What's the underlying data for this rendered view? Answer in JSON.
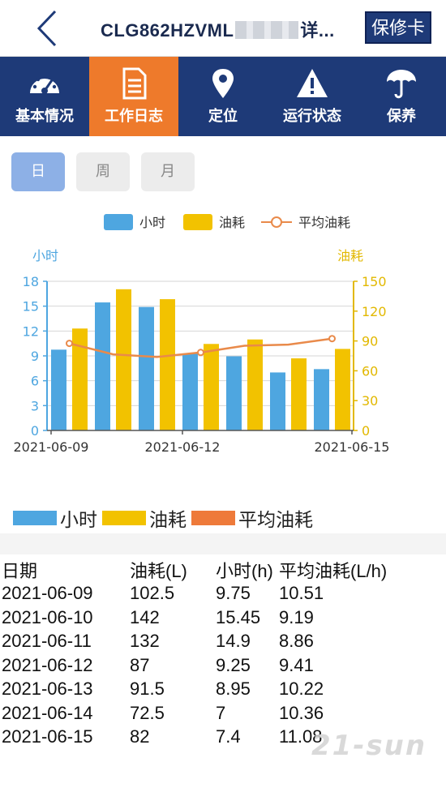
{
  "header": {
    "title": "CLG862HZVML",
    "title_suffix": "详...",
    "card_button": "保修卡"
  },
  "tabs": [
    {
      "label": "基本情况",
      "icon": "dashboard-icon"
    },
    {
      "label": "工作日志",
      "icon": "document-icon",
      "active": true
    },
    {
      "label": "定位",
      "icon": "location-pin-icon"
    },
    {
      "label": "运行状态",
      "icon": "warning-icon"
    },
    {
      "label": "保养",
      "icon": "umbrella-icon"
    }
  ],
  "periods": {
    "day": "日",
    "week": "周",
    "month": "月",
    "selected": "日"
  },
  "chart_legend": {
    "hours": "小时",
    "fuel": "油耗",
    "avg": "平均油耗"
  },
  "chart_data": {
    "type": "bar",
    "left_axis_label": "小时",
    "right_axis_label": "油耗",
    "categories": [
      "2021-06-09",
      "2021-06-10",
      "2021-06-11",
      "2021-06-12",
      "2021-06-13",
      "2021-06-14",
      "2021-06-15"
    ],
    "x_tick_labels": [
      "2021-06-09",
      "2021-06-12",
      "2021-06-15"
    ],
    "y_left_ticks": [
      "0",
      "3",
      "6",
      "9",
      "12",
      "15",
      "18"
    ],
    "y_right_ticks": [
      "0",
      "30",
      "60",
      "90",
      "120",
      "150"
    ],
    "ylim_left": [
      0,
      18
    ],
    "ylim_right": [
      0,
      150
    ],
    "series": [
      {
        "name": "小时",
        "axis": "left",
        "kind": "bar",
        "color": "#4ea6e0",
        "values": [
          9.75,
          15.45,
          14.9,
          9.25,
          8.95,
          7,
          7.4
        ]
      },
      {
        "name": "油耗",
        "axis": "right",
        "kind": "bar",
        "color": "#f2c200",
        "values": [
          102.5,
          142,
          132,
          87,
          91.5,
          72.5,
          82
        ]
      },
      {
        "name": "平均油耗",
        "axis": "left",
        "kind": "line",
        "color": "#e98a4a",
        "values": [
          10.51,
          9.19,
          8.86,
          9.41,
          10.22,
          10.36,
          11.08
        ]
      }
    ],
    "left_axis_color": "#4ea6e0",
    "right_axis_color": "#e2b800"
  },
  "bottom_legend": {
    "hours": "小时",
    "fuel": "油耗",
    "avg": "平均油耗",
    "colors": {
      "hours": "#4ea6e0",
      "fuel": "#f2c200",
      "avg": "#ee7a3a"
    }
  },
  "table": {
    "headers": [
      "日期",
      "油耗(L)",
      "小时(h)",
      "平均油耗(L/h)"
    ],
    "rows": [
      [
        "2021-06-09",
        "102.5",
        "9.75",
        "10.51"
      ],
      [
        "2021-06-10",
        "142",
        "15.45",
        "9.19"
      ],
      [
        "2021-06-11",
        "132",
        "14.9",
        "8.86"
      ],
      [
        "2021-06-12",
        "87",
        "9.25",
        "9.41"
      ],
      [
        "2021-06-13",
        "91.5",
        "8.95",
        "10.22"
      ],
      [
        "2021-06-14",
        "72.5",
        "7",
        "10.36"
      ],
      [
        "2021-06-15",
        "82",
        "7.4",
        "11.08"
      ]
    ]
  },
  "watermark": "21-sun"
}
